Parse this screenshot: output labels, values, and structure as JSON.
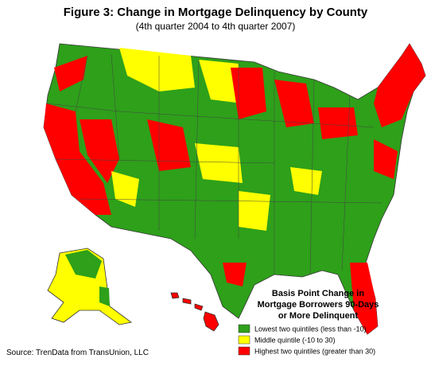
{
  "header": {
    "title": "Figure 3: Change in Mortgage Delinquency by County",
    "subtitle": "(4th quarter 2004 to 4th quarter 2007)"
  },
  "legend": {
    "title": [
      "Basis Point Change in",
      "Mortgage Borrowers 90-Days",
      "or More Delinquent"
    ],
    "items": [
      {
        "label": "Lowest two quintiles (less than -10)",
        "color": "#2ea01a"
      },
      {
        "label": "Middle quintile (-10 to 30)",
        "color": "#ffff00"
      },
      {
        "label": "Highest two quintiles (greater than 30)",
        "color": "#ff0000"
      }
    ]
  },
  "source": "Source:  TrenData from TransUnion, LLC"
}
